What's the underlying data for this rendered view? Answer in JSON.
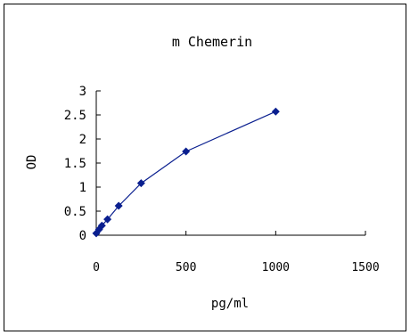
{
  "chart_data": {
    "type": "scatter",
    "title": "m Chemerin",
    "xlabel": "pg/ml",
    "ylabel": "OD",
    "xlim": [
      0,
      1500
    ],
    "ylim": [
      0,
      3
    ],
    "x_ticks": [
      "0",
      "500",
      "1000",
      "1500"
    ],
    "y_ticks": [
      "0",
      "0.5",
      "1",
      "1.5",
      "2",
      "2.5",
      "3"
    ],
    "grid": false,
    "legend": "none",
    "series": [
      {
        "x": [
          0,
          15.6,
          31.25,
          62.5,
          125,
          250,
          500,
          1000
        ],
        "y": [
          0.04,
          0.12,
          0.2,
          0.33,
          0.61,
          1.08,
          1.74,
          2.57
        ],
        "color": "#0a1f8f",
        "marker": "diamond",
        "fit_line": true
      }
    ]
  }
}
